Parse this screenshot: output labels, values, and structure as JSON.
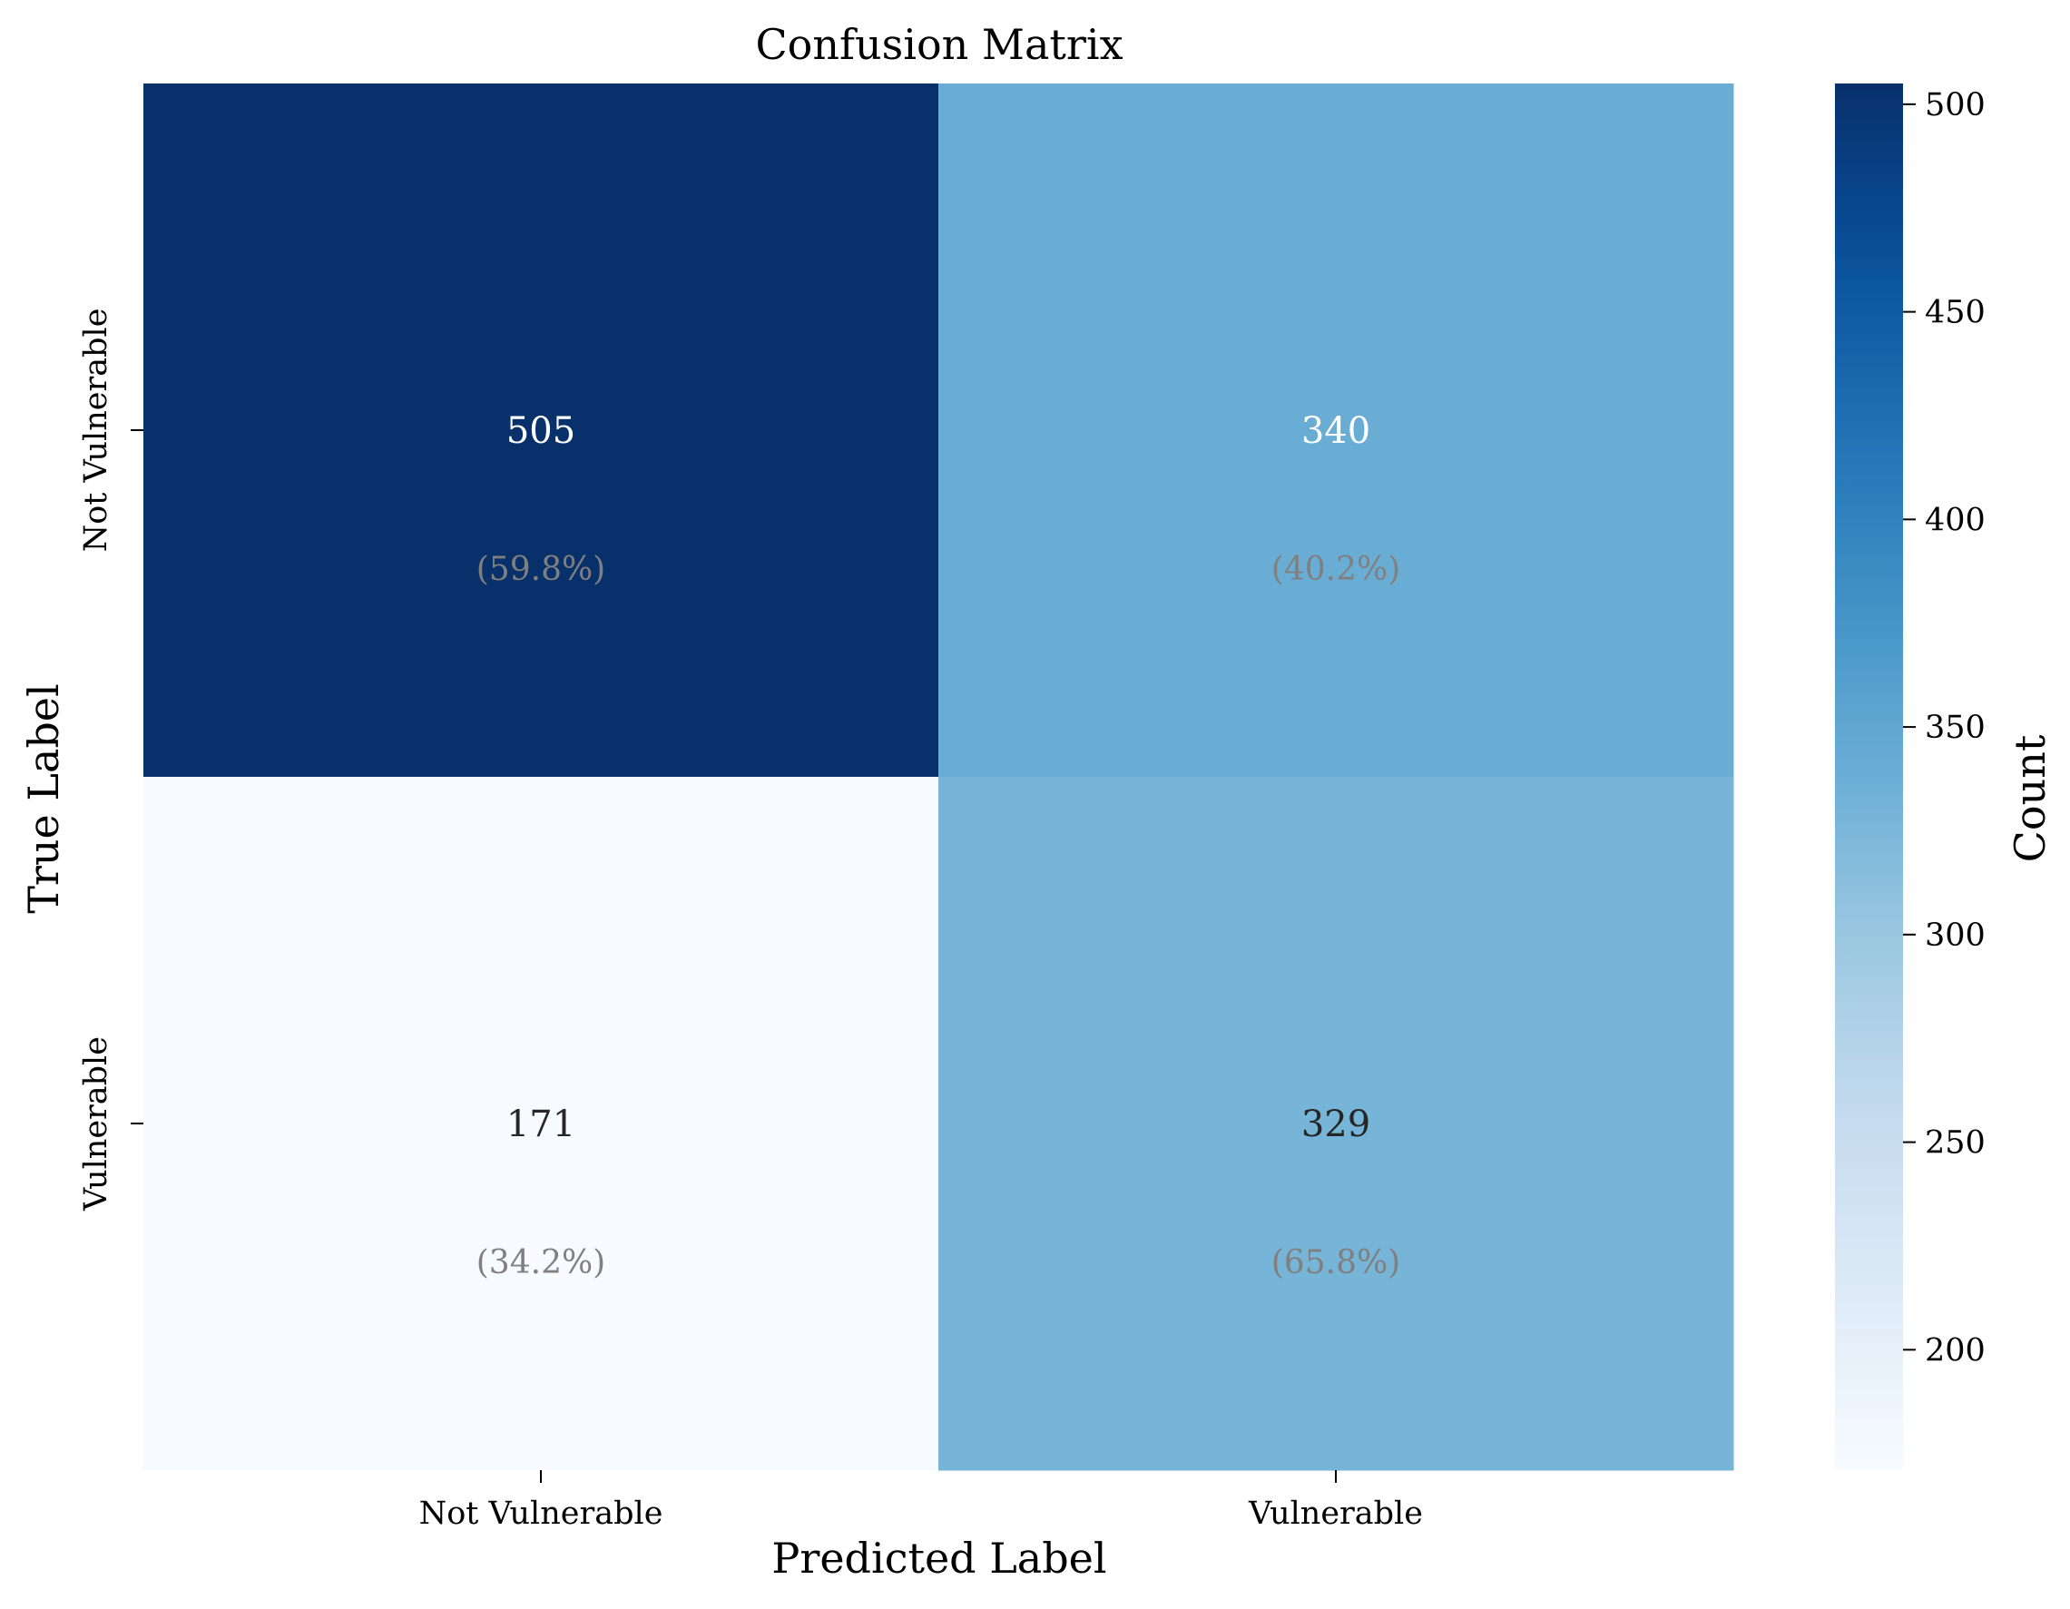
{
  "chart_data": {
    "type": "heatmap",
    "title": "Confusion Matrix",
    "xlabel": "Predicted Label",
    "ylabel": "True Label",
    "x_categories": [
      "Not Vulnerable",
      "Vulnerable"
    ],
    "y_categories": [
      "Not Vulnerable",
      "Vulnerable"
    ],
    "values": [
      [
        505,
        340
      ],
      [
        171,
        329
      ]
    ],
    "row_percent_labels": [
      [
        "(59.8%)",
        "(40.2%)"
      ],
      [
        "(34.2%)",
        "(65.8%)"
      ]
    ],
    "colorbar": {
      "label": "Count",
      "range": [
        171,
        505
      ],
      "ticks": [
        200,
        250,
        300,
        350,
        400,
        450,
        500
      ],
      "colormap": "Blues"
    },
    "colors": {
      "annotation_light": "#ffffff",
      "annotation_dark": "#262626",
      "percent_text": "#808080"
    }
  }
}
